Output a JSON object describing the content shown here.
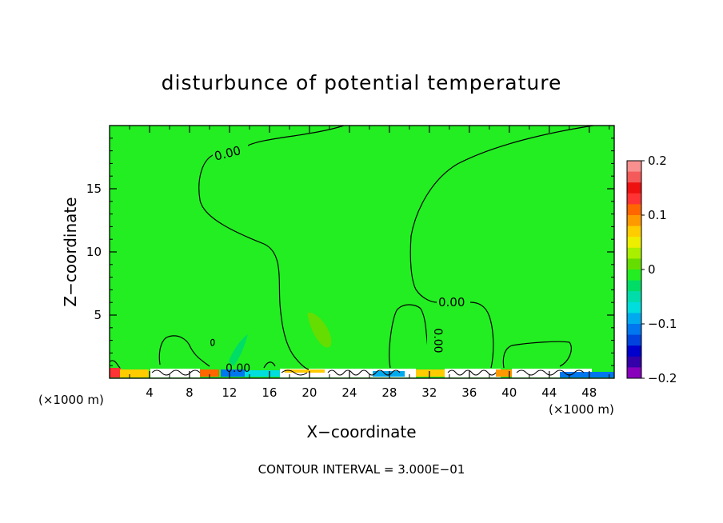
{
  "chart_data": {
    "type": "heatmap",
    "title": "disturbunce of potential temperature",
    "xlabel": "X−coordinate",
    "ylabel": "Z−coordinate",
    "x_unit": "(×1000 m)",
    "x_unit_right": "(×1000 m)",
    "xlim": [
      0,
      50.5
    ],
    "ylim": [
      0,
      20
    ],
    "x_ticks": [
      4,
      8,
      12,
      16,
      20,
      24,
      28,
      32,
      36,
      40,
      44,
      48
    ],
    "y_ticks": [
      5,
      10,
      15
    ],
    "footer": "CONTOUR INTERVAL = 3.000E−01",
    "contour_interval": 0.3,
    "field_background_value": 0.0,
    "background_color": "#22ee22",
    "contour_labels": [
      {
        "text": "0.00",
        "x": 11.8,
        "z": 17.7
      },
      {
        "text": "0.00",
        "x": 34.0,
        "z": 6.0
      },
      {
        "text": "0.00",
        "x": 32.0,
        "z": 2.8,
        "rotation": 90
      },
      {
        "text": "0.00",
        "x": 13.1,
        "z": 0.8
      }
    ],
    "colorbar": {
      "min": -0.2,
      "max": 0.2,
      "tick_labels": [
        "0.2",
        "0.1",
        "0",
        "−0.1",
        "−0.2"
      ],
      "tick_values": [
        0.2,
        0.1,
        0,
        -0.1,
        -0.2
      ],
      "colors": [
        "#f89090",
        "#f45a5a",
        "#ee1111",
        "#ff3333",
        "#ff6600",
        "#ff9900",
        "#ffcc00",
        "#eeee00",
        "#aaee00",
        "#66dd00",
        "#22ee22",
        "#00dd66",
        "#00ddaa",
        "#00dddd",
        "#00aaee",
        "#0077ee",
        "#0044dd",
        "#0000cc",
        "#3300aa",
        "#8800bb"
      ]
    }
  }
}
